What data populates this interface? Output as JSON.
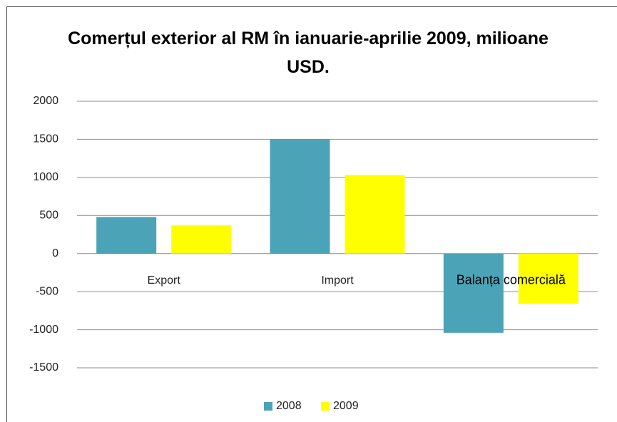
{
  "chart_data": {
    "type": "bar",
    "title": "Comerțul exterior al RM în ianuarie-aprilie 2009, milioane USD.",
    "categories": [
      "Export",
      "Import",
      "Balanța comercială"
    ],
    "series": [
      {
        "name": "2008",
        "color": "#4BA3B7",
        "values": [
          480,
          1500,
          -1040
        ]
      },
      {
        "name": "2009",
        "color": "#FFFF00",
        "values": [
          370,
          1030,
          -660
        ]
      }
    ],
    "ylim": [
      -1500,
      2000
    ],
    "yticks": [
      -1500,
      -1000,
      -500,
      0,
      500,
      1000,
      1500,
      2000
    ],
    "grid": true,
    "legend": "bottom"
  }
}
